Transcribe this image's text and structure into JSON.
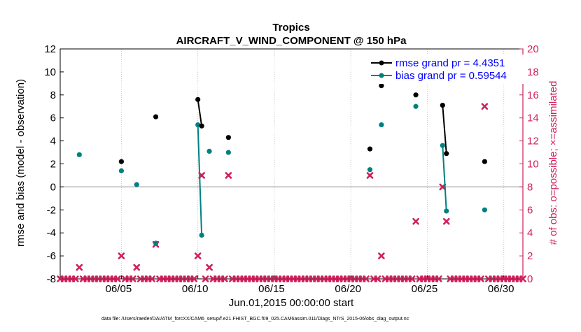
{
  "chart_data": {
    "type": "scatter",
    "title": "Tropics",
    "subtitle": "AIRCRAFT_V_WIND_COMPONENT @ 150 hPa",
    "xlabel": "Jun.01,2015 00:00:00 start",
    "ylabel": "rmse and bias (model - observation)",
    "y2label": "# of obs: o=possible; ×=assimilated",
    "footer": "data file: /Users/raeder/DAI/ATM_forcXX/CAM6_setup/f.e21.FHIST_BGC.f09_025.CAM6assim.011/Diags_NTrS_2015-06/obs_diag_output.nc",
    "xlim": [
      1.0,
      31.25
    ],
    "ylim": [
      -8,
      12
    ],
    "y2lim": [
      0,
      20
    ],
    "xticks": [
      5,
      10,
      15,
      20,
      25,
      30
    ],
    "xtick_labels": [
      "06/05",
      "06/10",
      "06/15",
      "06/20",
      "06/25",
      "06/30"
    ],
    "yticks": [
      -8,
      -6,
      -4,
      -2,
      0,
      2,
      4,
      6,
      8,
      10,
      12
    ],
    "y2ticks": [
      0,
      2,
      4,
      6,
      8,
      10,
      12,
      14,
      16,
      18,
      20
    ],
    "zero_line": 0,
    "legend_position": "top-right",
    "colors": {
      "rmse": "#000000",
      "bias": "#008080",
      "obs": "#d01f5c",
      "zero": "#b4b4b4"
    },
    "series": [
      {
        "name": "rmse grand pr = 4.4351",
        "color": "#000000",
        "points": [
          [
            5,
            2.2
          ],
          [
            7.25,
            6.1
          ],
          [
            10,
            7.6
          ],
          [
            10.25,
            5.3
          ],
          [
            12,
            4.3
          ],
          [
            21.25,
            3.3
          ],
          [
            22,
            8.8
          ],
          [
            24.25,
            8.0
          ],
          [
            26,
            7.1
          ],
          [
            26.25,
            2.9
          ],
          [
            28.75,
            2.2
          ]
        ]
      },
      {
        "name": "bias grand pr = 0.59544",
        "color": "#008080",
        "points": [
          [
            2.25,
            2.8
          ],
          [
            5,
            1.4
          ],
          [
            6,
            0.2
          ],
          [
            7.25,
            -4.9
          ],
          [
            10,
            5.4
          ],
          [
            10.25,
            -4.2
          ],
          [
            10.75,
            3.1
          ],
          [
            12,
            3.0
          ],
          [
            21.25,
            1.5
          ],
          [
            22,
            5.4
          ],
          [
            24.25,
            7.0
          ],
          [
            26,
            3.6
          ],
          [
            26.25,
            -2.1
          ],
          [
            28.75,
            -2.0
          ]
        ]
      }
    ],
    "connected_segments": [
      [
        [
          10,
          10.25
        ]
      ],
      [
        [
          26,
          26.25
        ]
      ]
    ],
    "obs_assimilated": {
      "name": "# of obs assimilated",
      "color": "#d01f5c",
      "points": [
        [
          2.25,
          1
        ],
        [
          5,
          2
        ],
        [
          6,
          1
        ],
        [
          7.25,
          3
        ],
        [
          10,
          2
        ],
        [
          10.25,
          9
        ],
        [
          10.75,
          1
        ],
        [
          12,
          9
        ],
        [
          21.25,
          9
        ],
        [
          22,
          2
        ],
        [
          24.25,
          5
        ],
        [
          26,
          8
        ],
        [
          26.25,
          5
        ],
        [
          28.75,
          15
        ]
      ]
    }
  }
}
